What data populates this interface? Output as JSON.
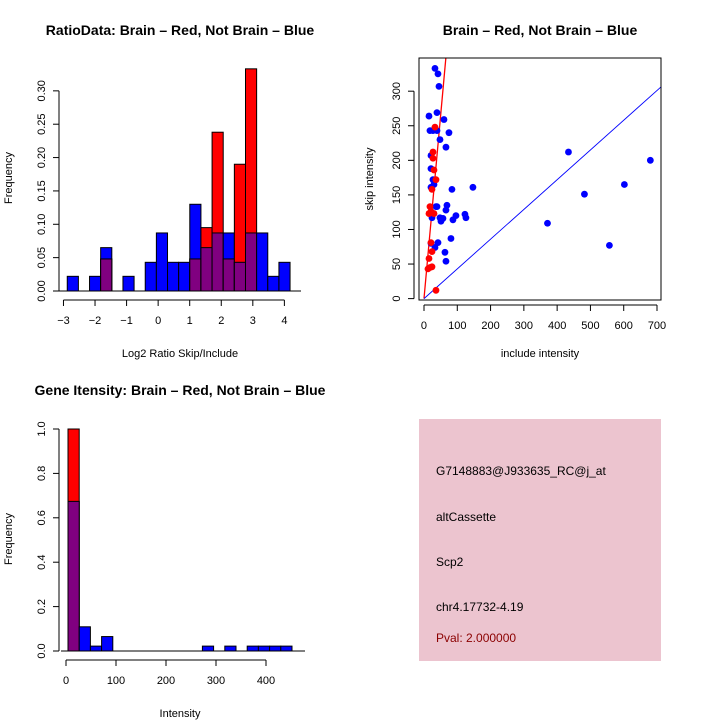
{
  "colors": {
    "brain": "#ff0000",
    "not_brain": "#0000ff",
    "overlap": "#800080",
    "info_bg": "#ecc4cf",
    "pval_text": "#8b0000"
  },
  "chart_data": [
    {
      "id": "ratio_hist",
      "type": "bar",
      "subtype": "overlaid-histogram",
      "title": "RatioData: Brain – Red, Not Brain – Blue",
      "xlabel": "Log2 Ratio Skip/Include",
      "ylabel": "Frequency",
      "xlim": [
        -3.3,
        4.4
      ],
      "ylim": [
        0,
        0.335
      ],
      "xticks": [
        -3,
        -2,
        -1,
        0,
        1,
        2,
        3,
        4
      ],
      "xtick_labels": [
        "−3",
        "−2",
        "−1",
        "0",
        "1",
        "2",
        "3",
        "4"
      ],
      "yticks": [
        0,
        0.05,
        0.1,
        0.15,
        0.2,
        0.25,
        0.3
      ],
      "ytick_labels": [
        "0.00",
        "0.05",
        "0.10",
        "0.15",
        "0.20",
        "0.25",
        "0.30"
      ],
      "bin_start": -2.88,
      "bin_width": 0.353,
      "series": [
        {
          "name": "Not Brain",
          "color": "blue",
          "values": [
            0.022,
            0,
            0.022,
            0.065,
            0,
            0.022,
            0,
            0.043,
            0.087,
            0.043,
            0.043,
            0.13,
            0.065,
            0.087,
            0.087,
            0.043,
            0.087,
            0.087,
            0.022,
            0.043
          ]
        },
        {
          "name": "Brain",
          "color": "red",
          "values": [
            0,
            0,
            0,
            0.048,
            0,
            0,
            0,
            0,
            0,
            0,
            0,
            0.048,
            0.095,
            0.238,
            0.048,
            0.19,
            0.333,
            0,
            0,
            0
          ]
        }
      ],
      "grid": false
    },
    {
      "id": "intensity_scatter",
      "type": "scatter",
      "title": "Brain – Red, Not Brain – Blue",
      "xlabel": "include intensity",
      "ylabel": "skip intensity",
      "xlim": [
        -15,
        712
      ],
      "ylim": [
        -2,
        348
      ],
      "xticks": [
        0,
        100,
        200,
        300,
        400,
        500,
        600,
        700
      ],
      "xtick_labels": [
        "0",
        "100",
        "200",
        "300",
        "400",
        "500",
        "600",
        "700"
      ],
      "yticks": [
        0,
        50,
        100,
        150,
        200,
        250,
        300
      ],
      "ytick_labels": [
        "0",
        "50",
        "100",
        "150",
        "200",
        "250",
        "300"
      ],
      "series": [
        {
          "name": "Not Brain",
          "color": "blue",
          "points": [
            [
              33,
              333
            ],
            [
              42,
              325
            ],
            [
              45,
              307
            ],
            [
              15,
              264
            ],
            [
              39,
              269
            ],
            [
              60,
              259
            ],
            [
              18,
              243
            ],
            [
              27,
              243
            ],
            [
              39,
              243
            ],
            [
              75,
              240
            ],
            [
              48,
              230
            ],
            [
              66,
              219
            ],
            [
              21,
              207
            ],
            [
              21,
              188
            ],
            [
              27,
              172
            ],
            [
              30,
              165
            ],
            [
              21,
              161
            ],
            [
              84,
              158
            ],
            [
              147,
              161
            ],
            [
              36,
              133
            ],
            [
              69,
              135
            ],
            [
              66,
              128
            ],
            [
              39,
              133
            ],
            [
              24,
              117
            ],
            [
              48,
              117
            ],
            [
              51,
              112
            ],
            [
              57,
              116
            ],
            [
              87,
              114
            ],
            [
              96,
              120
            ],
            [
              123,
              122
            ],
            [
              126,
              117
            ],
            [
              81,
              87
            ],
            [
              21,
              80
            ],
            [
              42,
              81
            ],
            [
              33,
              74
            ],
            [
              63,
              67
            ],
            [
              66,
              54
            ],
            [
              434,
              212
            ],
            [
              680,
              200
            ],
            [
              602,
              165
            ],
            [
              482,
              151
            ],
            [
              371,
              109
            ],
            [
              557,
              77
            ]
          ]
        },
        {
          "name": "Brain",
          "color": "red",
          "points": [
            [
              33,
              248
            ],
            [
              27,
              212
            ],
            [
              27,
              203
            ],
            [
              30,
              186
            ],
            [
              36,
              172
            ],
            [
              24,
              158
            ],
            [
              18,
              133
            ],
            [
              21,
              126
            ],
            [
              30,
              123
            ],
            [
              15,
              123
            ],
            [
              21,
              81
            ],
            [
              24,
              68
            ],
            [
              15,
              58
            ],
            [
              18,
              45
            ],
            [
              12,
              43
            ],
            [
              24,
              46
            ],
            [
              36,
              12
            ]
          ]
        }
      ],
      "lines": [
        {
          "name": "Brain fit",
          "color": "red",
          "slope": 5.3,
          "intercept": 0
        },
        {
          "name": "Not Brain fit",
          "color": "blue",
          "slope": 0.43,
          "intercept": 0
        }
      ],
      "grid": false
    },
    {
      "id": "gene_intensity_hist",
      "type": "bar",
      "subtype": "overlaid-histogram",
      "title": "Gene Itensity: Brain – Red, Not Brain – Blue",
      "xlabel": "Intensity",
      "ylabel": "Frequency",
      "xlim": [
        -18,
        470
      ],
      "ylim": [
        0,
        1.0
      ],
      "xticks": [
        0,
        100,
        200,
        300,
        400
      ],
      "xtick_labels": [
        "0",
        "100",
        "200",
        "300",
        "400"
      ],
      "yticks": [
        0,
        0.2,
        0.4,
        0.6,
        0.8,
        1.0
      ],
      "ytick_labels": [
        "0.0",
        "0.2",
        "0.4",
        "0.6",
        "0.8",
        "1.0"
      ],
      "bin_start": 4,
      "bin_width": 22.4,
      "series": [
        {
          "name": "Not Brain",
          "color": "blue",
          "values": [
            0.674,
            0.109,
            0.022,
            0.065,
            0,
            0,
            0,
            0,
            0,
            0,
            0,
            0,
            0.022,
            0,
            0.022,
            0,
            0.022,
            0.022,
            0.022,
            0.022
          ]
        },
        {
          "name": "Brain",
          "color": "red",
          "values": [
            1.0,
            0,
            0,
            0,
            0,
            0,
            0,
            0,
            0,
            0,
            0,
            0,
            0,
            0,
            0,
            0,
            0,
            0,
            0,
            0
          ]
        }
      ],
      "grid": false
    }
  ],
  "info_panel": {
    "probe_id": "G7148883@J933635_RC@j_at",
    "event_type": "altCassette",
    "gene": "Scp2",
    "location": "chr4.17732-4.19",
    "pval": "Pval: 2.000000"
  }
}
